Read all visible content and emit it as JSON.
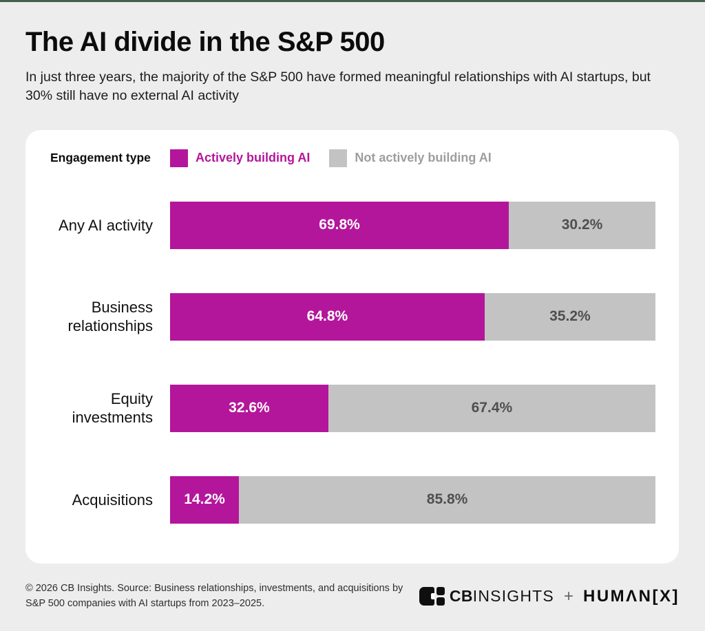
{
  "page": {
    "title": "The AI divide in the S&P 500",
    "subtitle": "In just three years, the majority of the S&P 500 have formed meaningful relationships with AI startups, but 30% still have no external AI activity"
  },
  "legend": {
    "label": "Engagement type",
    "items": [
      {
        "label": "Actively building AI",
        "color": "#b4169b"
      },
      {
        "label": "Not actively building AI",
        "color": "#c3c3c3"
      }
    ]
  },
  "chart_data": {
    "type": "bar",
    "orientation": "horizontal-stacked",
    "title": "The AI divide in the S&P 500",
    "categories": [
      "Any AI activity",
      "Business relationships",
      "Equity investments",
      "Acquisitions"
    ],
    "series": [
      {
        "name": "Actively building AI",
        "color": "#b4169b",
        "values": [
          69.8,
          64.8,
          32.6,
          14.2
        ]
      },
      {
        "name": "Not actively building AI",
        "color": "#c3c3c3",
        "values": [
          30.2,
          35.2,
          67.4,
          85.8
        ]
      }
    ],
    "value_suffix": "%",
    "xlim": [
      0,
      100
    ],
    "grid": false,
    "legend_position": "top"
  },
  "footer": {
    "source": "© 2026 CB Insights. Source: Business relationships, investments, and acquisitions by S&P 500 companies with AI startups from 2023–2025.",
    "cbinsights_bold": "CB",
    "cbinsights_light": "INSIGHTS",
    "plus": "+",
    "humanx_logo": "HUMΛN[X]"
  },
  "colors": {
    "active": "#b4169b",
    "inactive": "#c3c3c3",
    "background": "#ededed",
    "card": "#ffffff",
    "top_strip": "#47604d"
  }
}
